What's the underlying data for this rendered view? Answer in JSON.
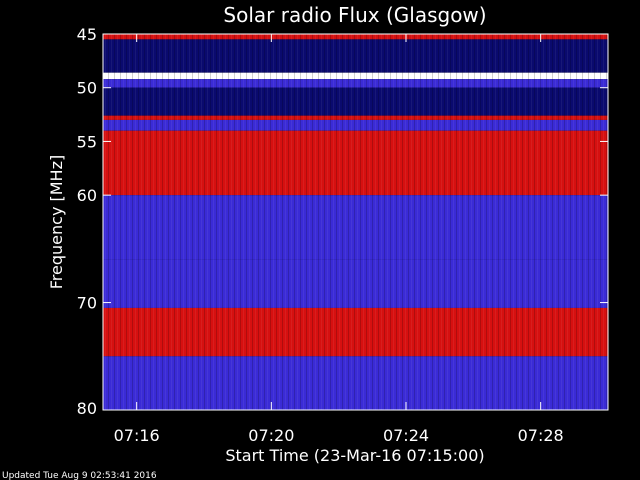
{
  "chart_data": {
    "type": "heatmap",
    "title": "Solar radio Flux (Glasgow)",
    "xlabel": "Start Time (23-Mar-16 07:15:00)",
    "ylabel": "Frequency [MHz]",
    "x_ticks": [
      "07:16",
      "07:20",
      "07:24",
      "07:28"
    ],
    "x_tick_minutes": [
      1,
      5,
      9,
      13
    ],
    "xlim_minutes": [
      0,
      15
    ],
    "y_ticks": [
      45,
      50,
      55,
      60,
      70,
      80
    ],
    "ylim": [
      45,
      80
    ],
    "colors": {
      "low": "#0a0a6e",
      "mid": "#3a2bd6",
      "high": "#d61010",
      "peak": "#ffffff",
      "burst": "#ff9a1a"
    },
    "bands_mhz": [
      {
        "from": 45.0,
        "to": 45.5,
        "level": "high"
      },
      {
        "from": 45.5,
        "to": 48.6,
        "level": "low"
      },
      {
        "from": 48.6,
        "to": 49.2,
        "level": "peak"
      },
      {
        "from": 49.2,
        "to": 50.0,
        "level": "mid"
      },
      {
        "from": 50.0,
        "to": 52.6,
        "level": "low"
      },
      {
        "from": 52.6,
        "to": 53.0,
        "level": "high"
      },
      {
        "from": 53.0,
        "to": 54.0,
        "level": "mid"
      },
      {
        "from": 54.0,
        "to": 60.0,
        "level": "high"
      },
      {
        "from": 60.0,
        "to": 66.0,
        "level": "mid"
      },
      {
        "from": 66.0,
        "to": 70.5,
        "level": "mid"
      },
      {
        "from": 70.5,
        "to": 75.0,
        "level": "high"
      },
      {
        "from": 75.0,
        "to": 80.0,
        "level": "mid"
      }
    ]
  },
  "footer": {
    "updated": "Updated Tue Aug  9 02:53:41 2016"
  }
}
